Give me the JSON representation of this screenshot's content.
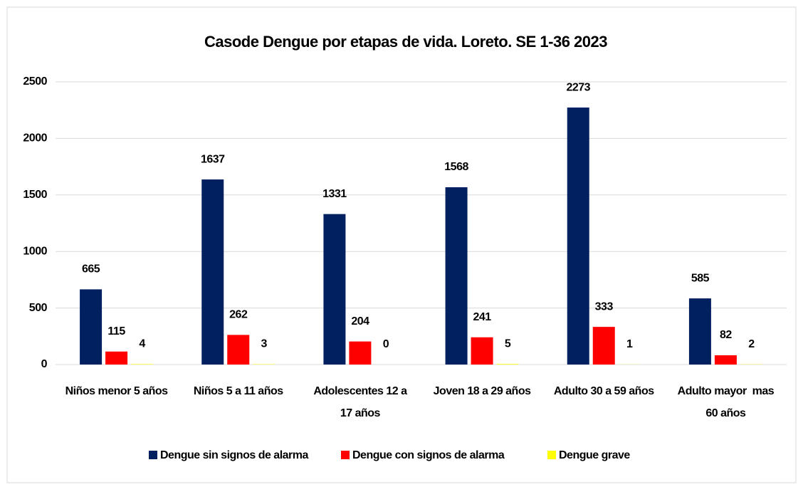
{
  "chart_data": {
    "type": "bar",
    "title": "Casode Dengue por etapas de vida. Loreto. SE 1-36 2023",
    "categories": [
      "Niños menor 5 años",
      "Niños 5 a 11 años",
      "Adolescentes 12 a 17 años",
      "Joven 18 a 29 años",
      "Adulto 30 a 59 años",
      "Adulto mayor  mas 60 años"
    ],
    "series": [
      {
        "name": "Dengue sin signos de alarma",
        "color": "#002060",
        "values": [
          665,
          1637,
          1331,
          1568,
          2273,
          585
        ]
      },
      {
        "name": "Dengue con signos de alarma",
        "color": "#ff0000",
        "values": [
          115,
          262,
          204,
          241,
          333,
          82
        ]
      },
      {
        "name": "Dengue grave",
        "color": "#ffff00",
        "values": [
          4,
          3,
          0,
          5,
          1,
          2
        ]
      }
    ],
    "ylim": [
      0,
      2500
    ],
    "yticks": [
      0,
      500,
      1000,
      1500,
      2000,
      2500
    ],
    "grid": true,
    "legend": "bottom"
  }
}
